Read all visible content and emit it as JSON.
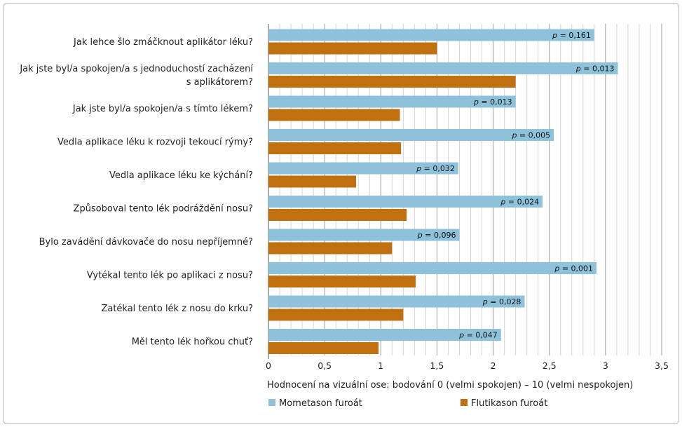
{
  "chart_data": {
    "type": "bar",
    "orientation": "horizontal",
    "categories": [
      "Jak lehce šlo zmáčknout aplikátor léku?",
      "Jak jste byl/a spokojen/a s jednoduchostí zacházení s aplikátorem?",
      "Jak jste byl/a spokojen/a s tímto lékem?",
      "Vedla aplikace léku k rozvoji tekoucí rýmy?",
      "Vedla aplikace léku ke kýchání?",
      "Způsoboval tento lék podráždění nosu?",
      "Bylo zavádění dávkovače do nosu nepříjemné?",
      "Vytékal tento lék po aplikaci z nosu?",
      "Zatékal tento lék z nosu do krku?",
      "Měl tento lék hořkou chuť?"
    ],
    "category_lines": [
      [
        "Jak lehce šlo zmáčknout aplikátor léku?"
      ],
      [
        "Jak jste byl/a spokojen/a s jednoduchostí zacházení",
        "s aplikátorem?"
      ],
      [
        "Jak jste byl/a spokojen/a s tímto lékem?"
      ],
      [
        "Vedla aplikace léku k rozvoji tekoucí rýmy?"
      ],
      [
        "Vedla aplikace léku ke kýchání?"
      ],
      [
        "Způsoboval tento lék podráždění nosu?"
      ],
      [
        "Bylo zavádění dávkovače do nosu nepříjemné?"
      ],
      [
        "Vytékal tento lék po aplikaci z nosu?"
      ],
      [
        "Zatékal tento lék z nosu do krku?"
      ],
      [
        "Měl tento lék hořkou chuť?"
      ]
    ],
    "series": [
      {
        "name": "Mometason furoát",
        "color": "#8ec1da",
        "values": [
          2.9,
          3.11,
          2.2,
          2.54,
          1.69,
          2.44,
          1.7,
          2.92,
          2.28,
          2.07
        ]
      },
      {
        "name": "Flutikason furoát",
        "color": "#c0700f",
        "values": [
          1.5,
          2.2,
          1.17,
          1.18,
          0.78,
          1.23,
          1.1,
          1.31,
          1.2,
          0.98
        ]
      }
    ],
    "p_labels": [
      "p = 0,161",
      "p = 0,013",
      "p = 0,013",
      "p = 0,005",
      "p = 0,032",
      "p = 0,024",
      "p = 0,096",
      "p = 0,001",
      "p = 0,028",
      "p = 0,047"
    ],
    "xlim": [
      0,
      3.5
    ],
    "xticks": [
      0,
      0.5,
      1,
      1.5,
      2,
      2.5,
      3,
      3.5
    ],
    "xtick_labels": [
      "0",
      "0,5",
      "1",
      "1,5",
      "2",
      "2,5",
      "3",
      "3,5"
    ],
    "xlabel": "Hodnocení na vizuální ose: bodování 0 (velmi spokojen) – 10 (velmi nespokojen)",
    "grid": true,
    "legend_position": "bottom"
  }
}
